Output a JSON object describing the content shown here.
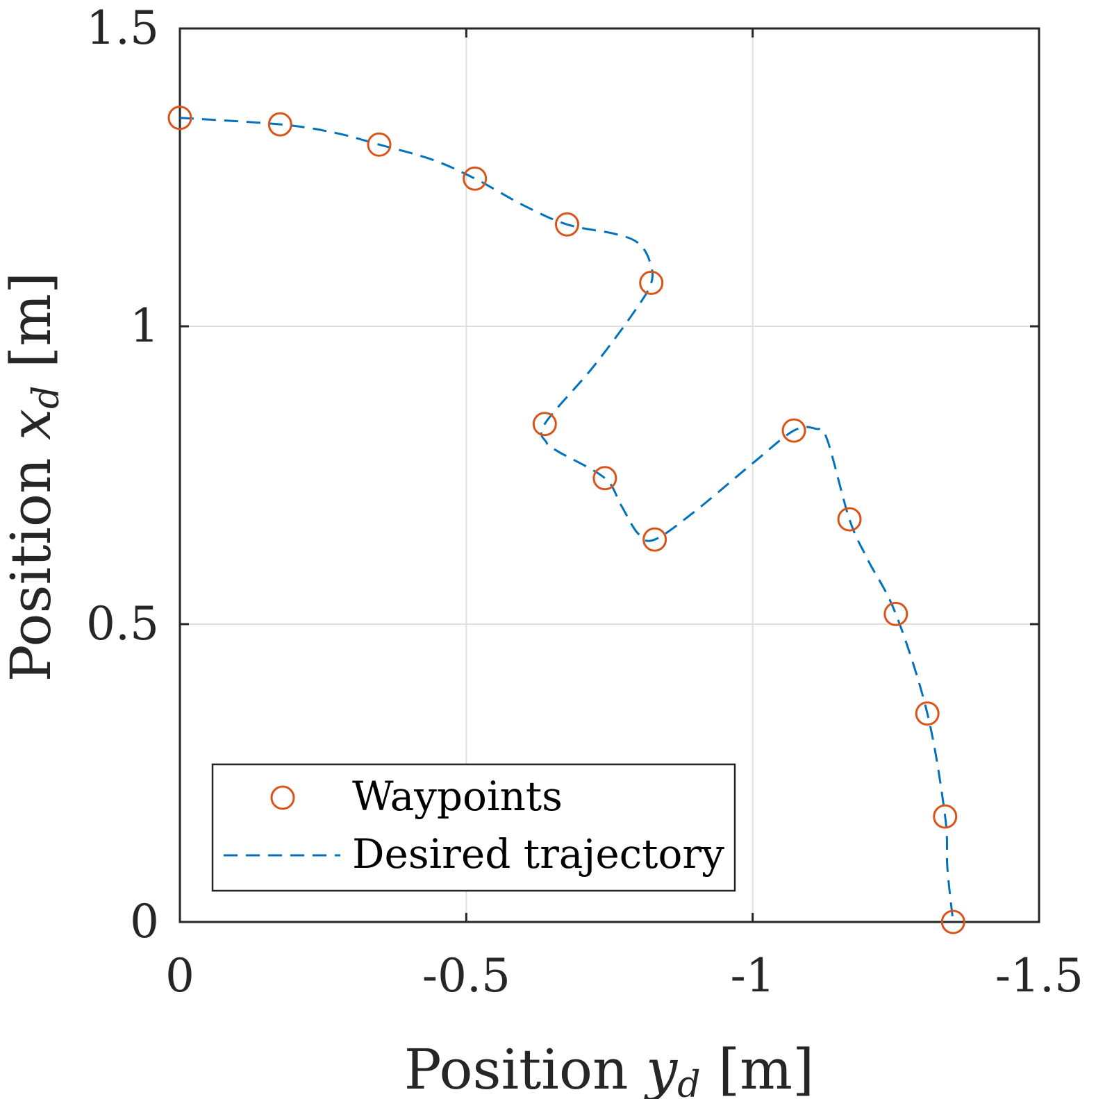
{
  "chart_data": {
    "type": "line",
    "title": "",
    "xlabel_prefix": "Position ",
    "xlabel_var": "y",
    "xlabel_sub": "d",
    "xlabel_unit": " [m]",
    "ylabel_prefix": "Position ",
    "ylabel_var": "x",
    "ylabel_sub": "d",
    "ylabel_unit": " [m]",
    "xlim": [
      0,
      -1.5
    ],
    "ylim": [
      0,
      1.5
    ],
    "xticks": [
      0,
      -0.5,
      -1,
      -1.5
    ],
    "xtick_labels": [
      "0",
      "-0.5",
      "-1",
      "-1.5"
    ],
    "yticks": [
      0,
      0.5,
      1,
      1.5
    ],
    "ytick_labels": [
      "0",
      "0.5",
      "1",
      "1.5"
    ],
    "grid": true,
    "legend_position": "bottom-left",
    "colors": {
      "waypoints": "#d95319",
      "trajectory": "#0072bd",
      "grid": "#dfdfdf",
      "axes": "#262626"
    },
    "series": [
      {
        "name": "Waypoints",
        "style": "markers",
        "marker": "circle",
        "x": [
          0,
          -0.175,
          -0.348,
          -0.515,
          -0.676,
          -0.823,
          -0.637,
          -0.742,
          -0.829,
          -1.072,
          -1.169,
          -1.25,
          -1.305,
          -1.336,
          -1.35
        ],
        "y": [
          1.35,
          1.339,
          1.305,
          1.248,
          1.171,
          1.073,
          0.836,
          0.745,
          0.642,
          0.825,
          0.676,
          0.517,
          0.35,
          0.177,
          0.0
        ]
      },
      {
        "name": "Desired trajectory",
        "style": "dashed-line",
        "x": [
          0,
          -0.175,
          -0.27,
          -0.348,
          -0.44,
          -0.515,
          -0.6,
          -0.676,
          -0.76,
          -0.8,
          -0.82,
          -0.823,
          -0.79,
          -0.72,
          -0.637,
          -0.64,
          -0.66,
          -0.742,
          -0.77,
          -0.8,
          -0.829,
          -0.9,
          -1.0,
          -1.072,
          -1.11,
          -1.13,
          -1.169,
          -1.2,
          -1.25,
          -1.305,
          -1.336,
          -1.34,
          -1.35
        ],
        "y": [
          1.35,
          1.339,
          1.325,
          1.305,
          1.28,
          1.248,
          1.203,
          1.171,
          1.155,
          1.14,
          1.11,
          1.073,
          1.02,
          0.93,
          0.836,
          0.805,
          0.79,
          0.745,
          0.7,
          0.652,
          0.642,
          0.69,
          0.77,
          0.825,
          0.828,
          0.81,
          0.676,
          0.61,
          0.517,
          0.35,
          0.177,
          0.09,
          0.0
        ]
      }
    ]
  }
}
